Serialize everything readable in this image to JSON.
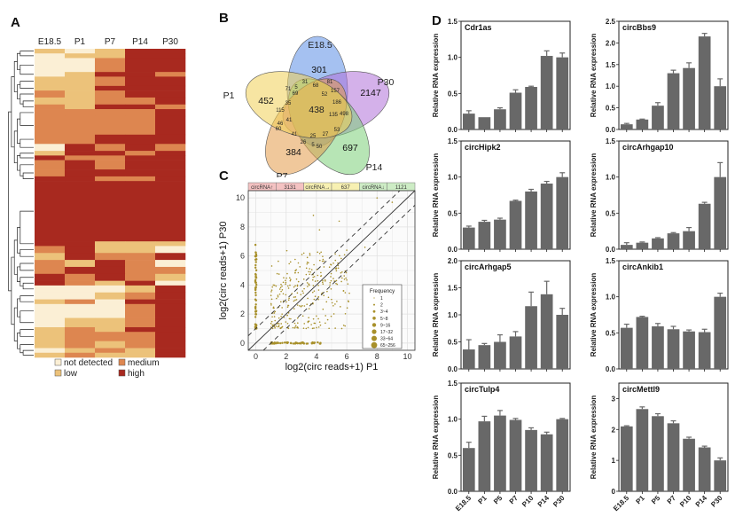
{
  "panels": {
    "A": "A",
    "B": "B",
    "C": "C",
    "D": "D"
  },
  "colors": {
    "not_detected": "#fbefd5",
    "low": "#ecc27a",
    "medium": "#dd8650",
    "high": "#a8291f",
    "bar": "#686868",
    "scatter_point": "#a8902a",
    "venn_E18.5": "#5b8ee6",
    "venn_P30": "#b071d8",
    "venn_P14": "#7ccf78",
    "venn_P7": "#e49a48",
    "venn_P1": "#f1cf56",
    "up_band": "#f4c2c2",
    "flat_band": "#f7f0b2",
    "down_band": "#cdecc5"
  },
  "chart_data": [
    {
      "type": "heatmap",
      "panel": "A",
      "title": "",
      "columns": [
        "E18.5",
        "P1",
        "P7",
        "P14",
        "P30"
      ],
      "levels": [
        "not detected",
        "low",
        "medium",
        "high"
      ],
      "legend": [
        "not detected",
        "low",
        "medium",
        "high"
      ],
      "legend_placement": "bottom",
      "row_blocks": [
        {
          "rows": 2,
          "values": [
            1,
            0,
            1,
            3,
            3
          ]
        },
        {
          "rows": 2,
          "values": [
            0,
            1,
            1,
            3,
            3
          ]
        },
        {
          "rows": 6,
          "values": [
            0,
            0,
            2,
            3,
            3
          ]
        },
        {
          "rows": 2,
          "values": [
            0,
            1,
            3,
            3,
            2
          ]
        },
        {
          "rows": 4,
          "values": [
            1,
            1,
            2,
            3,
            3
          ]
        },
        {
          "rows": 2,
          "values": [
            1,
            1,
            3,
            3,
            3
          ]
        },
        {
          "rows": 3,
          "values": [
            2,
            1,
            2,
            3,
            3
          ]
        },
        {
          "rows": 3,
          "values": [
            1,
            1,
            2,
            2,
            3
          ]
        },
        {
          "rows": 2,
          "values": [
            2,
            1,
            3,
            3,
            2
          ]
        },
        {
          "rows": 3,
          "values": [
            2,
            2,
            2,
            2,
            3
          ]
        },
        {
          "rows": 8,
          "values": [
            2,
            2,
            2,
            2,
            3
          ]
        },
        {
          "rows": 4,
          "values": [
            2,
            2,
            3,
            3,
            3
          ]
        },
        {
          "rows": 3,
          "values": [
            0,
            3,
            2,
            3,
            2
          ]
        },
        {
          "rows": 2,
          "values": [
            1,
            3,
            3,
            2,
            3
          ]
        },
        {
          "rows": 2,
          "values": [
            3,
            2,
            2,
            3,
            3
          ]
        },
        {
          "rows": 4,
          "values": [
            2,
            3,
            2,
            3,
            3
          ]
        },
        {
          "rows": 3,
          "values": [
            2,
            3,
            3,
            3,
            3
          ]
        },
        {
          "rows": 2,
          "values": [
            3,
            3,
            2,
            2,
            3
          ]
        },
        {
          "rows": 26,
          "values": [
            3,
            3,
            3,
            3,
            3
          ]
        },
        {
          "rows": 2,
          "values": [
            3,
            3,
            1,
            1,
            1
          ]
        },
        {
          "rows": 3,
          "values": [
            2,
            3,
            1,
            1,
            0
          ]
        },
        {
          "rows": 3,
          "values": [
            1,
            3,
            2,
            2,
            3
          ]
        },
        {
          "rows": 3,
          "values": [
            2,
            1,
            3,
            2,
            0
          ]
        },
        {
          "rows": 3,
          "values": [
            2,
            3,
            3,
            2,
            2
          ]
        },
        {
          "rows": 3,
          "values": [
            3,
            2,
            3,
            2,
            1
          ]
        },
        {
          "rows": 2,
          "values": [
            3,
            2,
            1,
            3,
            0
          ]
        },
        {
          "rows": 3,
          "values": [
            0,
            0,
            0,
            1,
            3
          ]
        },
        {
          "rows": 3,
          "values": [
            0,
            0,
            1,
            2,
            3
          ]
        },
        {
          "rows": 2,
          "values": [
            1,
            2,
            0,
            3,
            3
          ]
        },
        {
          "rows": 6,
          "values": [
            0,
            0,
            0,
            2,
            3
          ]
        },
        {
          "rows": 4,
          "values": [
            0,
            1,
            1,
            2,
            3
          ]
        },
        {
          "rows": 2,
          "values": [
            1,
            2,
            1,
            3,
            3
          ]
        },
        {
          "rows": 4,
          "values": [
            1,
            2,
            2,
            2,
            3
          ]
        },
        {
          "rows": 3,
          "values": [
            1,
            2,
            1,
            2,
            3
          ]
        },
        {
          "rows": 2,
          "values": [
            0,
            1,
            2,
            1,
            3
          ]
        },
        {
          "rows": 2,
          "values": [
            1,
            2,
            1,
            1,
            3
          ]
        }
      ]
    },
    {
      "type": "venn",
      "panel": "B",
      "sets": [
        "E18.5",
        "P30",
        "P14",
        "P7",
        "P1"
      ],
      "unique_counts": {
        "E18.5": 301,
        "P30": 2147,
        "P14": 697,
        "P7": 384,
        "P1": 452
      },
      "region_labels": [
        "31",
        "68",
        "81",
        "5",
        "71",
        "69",
        "52",
        "157",
        "35",
        "186",
        "115",
        "438",
        "135",
        "498",
        "41",
        "46",
        "60",
        "41",
        "25",
        "27",
        "53",
        "26",
        "5",
        "50"
      ],
      "center_all": 438
    },
    {
      "type": "scatter",
      "panel": "C",
      "xlabel": "log2(circ reads+1) P1",
      "ylabel": "log2(circ reads+1) P30",
      "xlim": [
        -0.5,
        10.5
      ],
      "ylim": [
        -0.5,
        10.5
      ],
      "xticks": [
        0,
        2,
        4,
        6,
        8,
        10
      ],
      "yticks": [
        0,
        2,
        4,
        6,
        8,
        10
      ],
      "grid": true,
      "reference_lines": [
        {
          "style": "solid",
          "slope": 1,
          "intercept": 0
        },
        {
          "style": "dashed",
          "slope": 1,
          "intercept": 1
        },
        {
          "style": "dashed",
          "slope": 1,
          "intercept": -1
        }
      ],
      "category_bar": [
        {
          "label": "circRNA↑",
          "count": "3131"
        },
        {
          "label": "circRNA→",
          "count": "637"
        },
        {
          "label": "circRNA↓",
          "count": "1121"
        }
      ],
      "legend_title": "Frequency",
      "legend_placement": "bottom-right",
      "legend": [
        "1",
        "2",
        "3~4",
        "5~8",
        "9~16",
        "17~32",
        "33~64",
        "65~256"
      ]
    },
    {
      "type": "bar",
      "panel": "D",
      "title": "Cdr1as",
      "ylabel": "Relative RNA expression",
      "categories": [
        "E18.5",
        "P1",
        "P5",
        "P7",
        "P10",
        "P14",
        "P30"
      ],
      "values": [
        0.22,
        0.17,
        0.28,
        0.51,
        0.59,
        1.02,
        1.0
      ],
      "errors": [
        0.04,
        0.0,
        0.02,
        0.04,
        0.01,
        0.07,
        0.06
      ],
      "ylim": [
        0,
        1.5
      ],
      "yticks": [
        "0.0",
        "0.5",
        "1.0",
        "1.5"
      ]
    },
    {
      "type": "bar",
      "panel": "D",
      "title": "circBbs9",
      "ylabel": "Relative RNA expression",
      "categories": [
        "E18.5",
        "P1",
        "P5",
        "P7",
        "P10",
        "P14",
        "P30"
      ],
      "values": [
        0.12,
        0.23,
        0.55,
        1.3,
        1.42,
        2.15,
        1.0
      ],
      "errors": [
        0.02,
        0.01,
        0.07,
        0.07,
        0.12,
        0.07,
        0.17
      ],
      "ylim": [
        0,
        2.5
      ],
      "yticks": [
        "0.0",
        "0.5",
        "1.0",
        "1.5",
        "2.0",
        "2.5"
      ]
    },
    {
      "type": "bar",
      "panel": "D",
      "title": "circHipk2",
      "ylabel": "Relative RNA expression",
      "categories": [
        "E18.5",
        "P1",
        "P5",
        "P7",
        "P10",
        "P14",
        "P30"
      ],
      "values": [
        0.3,
        0.38,
        0.41,
        0.67,
        0.8,
        0.91,
        1.0
      ],
      "errors": [
        0.02,
        0.02,
        0.02,
        0.01,
        0.03,
        0.03,
        0.06
      ],
      "ylim": [
        0,
        1.5
      ],
      "yticks": [
        "0.0",
        "0.5",
        "1.0",
        "1.5"
      ]
    },
    {
      "type": "bar",
      "panel": "D",
      "title": "circArhgap10",
      "ylabel": "Relative RNA expression",
      "categories": [
        "E18.5",
        "P1",
        "P5",
        "P7",
        "P10",
        "P14",
        "P30"
      ],
      "values": [
        0.06,
        0.09,
        0.15,
        0.22,
        0.25,
        0.63,
        1.0
      ],
      "errors": [
        0.03,
        0.01,
        0.01,
        0.01,
        0.05,
        0.02,
        0.2
      ],
      "ylim": [
        0,
        1.5
      ],
      "yticks": [
        "0.0",
        "0.5",
        "1.0",
        "1.5"
      ]
    },
    {
      "type": "bar",
      "panel": "D",
      "title": "circArhgap5",
      "ylabel": "Relative RNA expression",
      "categories": [
        "E18.5",
        "P1",
        "P5",
        "P7",
        "P10",
        "P14",
        "P30"
      ],
      "values": [
        0.36,
        0.44,
        0.5,
        0.6,
        1.16,
        1.38,
        1.0
      ],
      "errors": [
        0.18,
        0.03,
        0.13,
        0.09,
        0.26,
        0.24,
        0.12
      ],
      "ylim": [
        0,
        2.0
      ],
      "yticks": [
        "0.0",
        "0.5",
        "1.0",
        "1.5",
        "2.0"
      ]
    },
    {
      "type": "bar",
      "panel": "D",
      "title": "circAnkib1",
      "ylabel": "Relative RNA expression",
      "categories": [
        "E18.5",
        "P1",
        "P5",
        "P7",
        "P10",
        "P14",
        "P30"
      ],
      "values": [
        0.57,
        0.72,
        0.59,
        0.55,
        0.52,
        0.51,
        1.0
      ],
      "errors": [
        0.05,
        0.01,
        0.04,
        0.04,
        0.02,
        0.04,
        0.05
      ],
      "ylim": [
        0,
        1.5
      ],
      "yticks": [
        "0.0",
        "0.5",
        "1.0",
        "1.5"
      ]
    },
    {
      "type": "bar",
      "panel": "D",
      "title": "circTulp4",
      "ylabel": "Relative RNA expression",
      "categories": [
        "E18.5",
        "P1",
        "P5",
        "P7",
        "P10",
        "P14",
        "P30"
      ],
      "values": [
        0.6,
        0.97,
        1.05,
        0.99,
        0.85,
        0.79,
        1.0
      ],
      "errors": [
        0.08,
        0.07,
        0.07,
        0.02,
        0.03,
        0.03,
        0.01
      ],
      "ylim": [
        0,
        1.5
      ],
      "yticks": [
        "0.0",
        "0.5",
        "1.0",
        "1.5"
      ]
    },
    {
      "type": "bar",
      "panel": "D",
      "title": "circMettl9",
      "ylabel": "Relative RNA expression",
      "categories": [
        "E18.5",
        "P1",
        "P5",
        "P7",
        "P10",
        "P14",
        "P30"
      ],
      "values": [
        2.1,
        2.66,
        2.43,
        2.2,
        1.7,
        1.42,
        1.0
      ],
      "errors": [
        0.02,
        0.07,
        0.08,
        0.08,
        0.05,
        0.04,
        0.08
      ],
      "ylim": [
        0,
        3.5
      ],
      "yticks": [
        "0",
        "1",
        "2",
        "3"
      ]
    }
  ]
}
